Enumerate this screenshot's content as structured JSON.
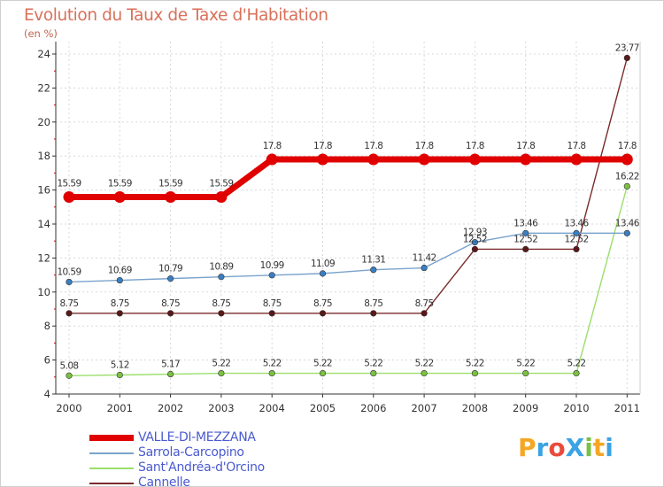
{
  "header": {
    "title": "Evolution du Taux de Taxe d'Habitation",
    "subtitle": "(en %)"
  },
  "logo": {
    "text": "ProXiti",
    "colors": [
      "#f5a623",
      "#3aa3e3",
      "#e94b3c",
      "#3aa3e3",
      "#7bc043",
      "#f5a623",
      "#3aa3e3"
    ]
  },
  "chart_data": {
    "type": "line",
    "title": "Evolution du Taux de Taxe d'Habitation",
    "ylabel": "(en %)",
    "xlabel": "",
    "categories": [
      "2000",
      "2001",
      "2002",
      "2003",
      "2004",
      "2005",
      "2006",
      "2007",
      "2008",
      "2009",
      "2010",
      "2011"
    ],
    "ylim": [
      4,
      24
    ],
    "yticks": [
      "4",
      "6",
      "8",
      "10",
      "12",
      "14",
      "16",
      "18",
      "20",
      "22",
      "24"
    ],
    "grid": true,
    "legend_position": "bottom-left",
    "series": [
      {
        "name": "VALLE-DI-MEZZANA",
        "color": "#e00000",
        "marker": "#e00000",
        "values": [
          15.59,
          15.59,
          15.59,
          15.59,
          17.8,
          17.8,
          17.8,
          17.8,
          17.8,
          17.8,
          17.8,
          17.8
        ],
        "labels": [
          "15.59",
          "15.59",
          "15.59",
          "15.59",
          "17.8",
          "17.8",
          "17.8",
          "17.8",
          "17.8",
          "17.8",
          "17.8",
          "17.8"
        ]
      },
      {
        "name": "Sarrola-Carcopino",
        "color": "#7aa3cc",
        "marker": "#3a7fc4",
        "values": [
          10.59,
          10.69,
          10.79,
          10.89,
          10.99,
          11.09,
          11.31,
          11.42,
          12.93,
          13.46,
          13.46,
          13.46
        ],
        "labels": [
          "10.59",
          "10.69",
          "10.79",
          "10.89",
          "10.99",
          "11.09",
          "11.31",
          "11.42",
          "12.93",
          "13.46",
          "13.46",
          "13.46"
        ]
      },
      {
        "name": "Sant'Andréa-d'Orcino",
        "color": "#9adf6a",
        "marker": "#7bc043",
        "values": [
          5.08,
          5.12,
          5.17,
          5.22,
          5.22,
          5.22,
          5.22,
          5.22,
          5.22,
          5.22,
          5.22,
          16.22
        ],
        "labels": [
          "5.08",
          "5.12",
          "5.17",
          "5.22",
          "5.22",
          "5.22",
          "5.22",
          "5.22",
          "5.22",
          "5.22",
          "5.22",
          "16.22"
        ]
      },
      {
        "name": "Cannelle",
        "color": "#7a2b2b",
        "marker": "#5a1818",
        "values": [
          8.75,
          8.75,
          8.75,
          8.75,
          8.75,
          8.75,
          8.75,
          8.75,
          12.52,
          12.52,
          12.52,
          23.77
        ],
        "labels": [
          "8.75",
          "8.75",
          "8.75",
          "8.75",
          "8.75",
          "8.75",
          "8.75",
          "8.75",
          "12.52",
          "12.52",
          "12.52",
          "23.77"
        ]
      }
    ]
  }
}
